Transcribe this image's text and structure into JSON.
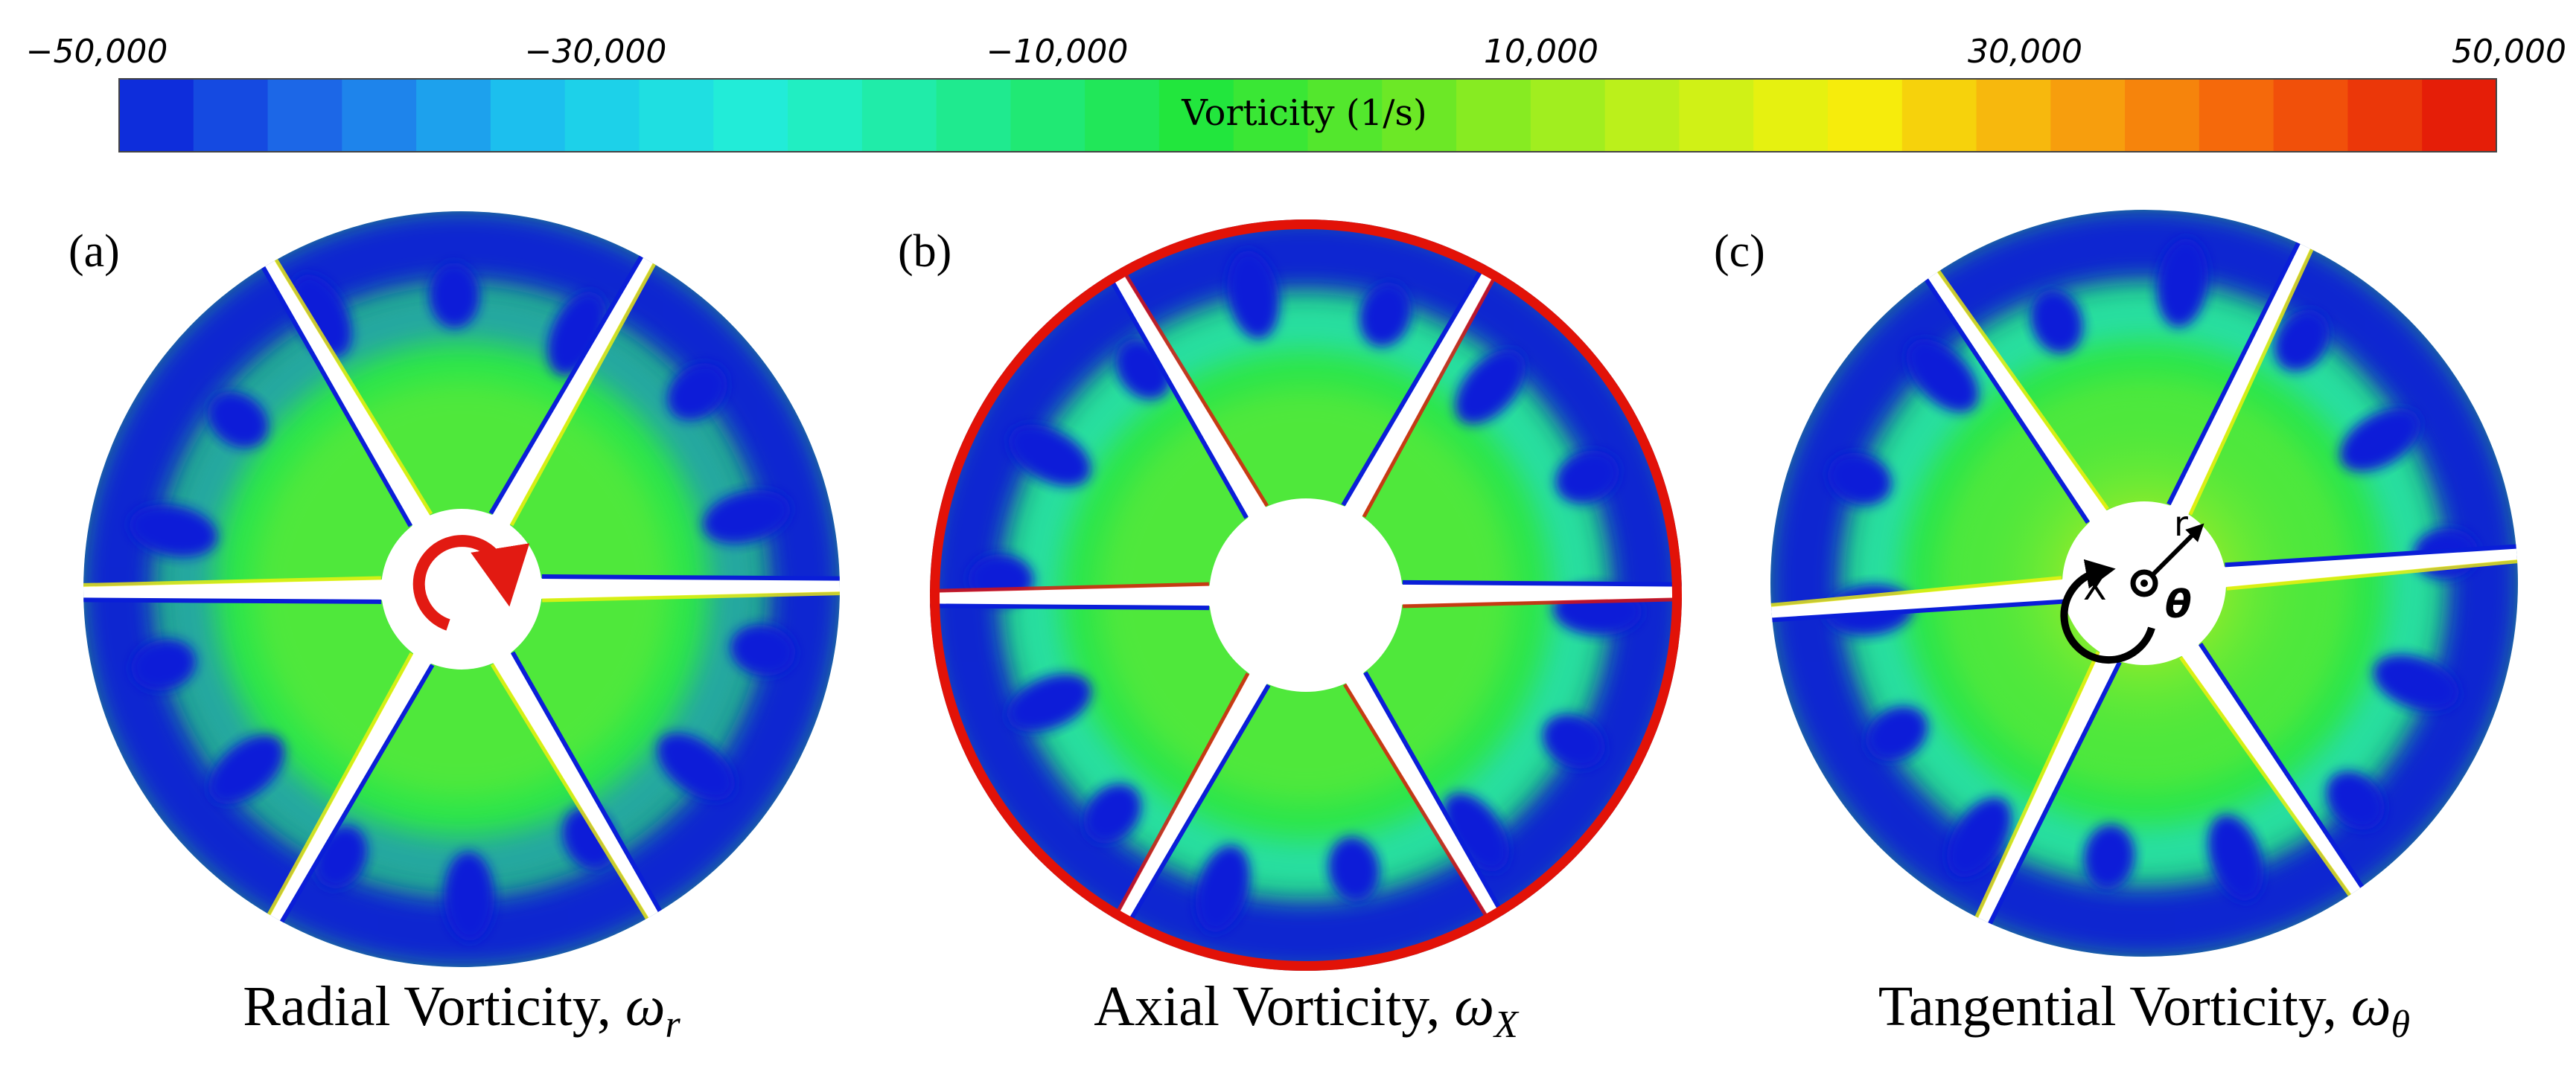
{
  "colorbar": {
    "title": "Vorticity  (1/s)",
    "ticks": [
      {
        "label": "−50,000",
        "value": -50000
      },
      {
        "label": "−30,000",
        "value": -30000
      },
      {
        "label": "−10,000",
        "value": -10000
      },
      {
        "label": "10,000",
        "value": 10000
      },
      {
        "label": "30,000",
        "value": 30000
      },
      {
        "label": "50,000",
        "value": 50000
      }
    ],
    "min": -50000,
    "max": 50000,
    "levels": 32,
    "stops": [
      "#0a1ed8",
      "#1f73ea",
      "#1cc8ef",
      "#22efd6",
      "#1fea8c",
      "#22e63c",
      "#6be826",
      "#b8f01c",
      "#f6f20c",
      "#f7a60d",
      "#f45a0a",
      "#e21208"
    ]
  },
  "panels": [
    {
      "label": "(a)",
      "caption_main": "Radial Vorticity, ",
      "caption_sym": "ω",
      "caption_sub": "r",
      "annotation": "rotation-arrow"
    },
    {
      "label": "(b)",
      "caption_main": "Axial Vorticity, ",
      "caption_sym": "ω",
      "caption_sub": "X",
      "annotation": "none"
    },
    {
      "label": "(c)",
      "caption_main": "Tangential Vorticity, ",
      "caption_sym": "ω",
      "caption_sub": "θ",
      "annotation": "coordinate-system"
    }
  ],
  "coord_labels": {
    "x": "X",
    "r": "r",
    "theta": "θ"
  },
  "blade_count": 6
}
